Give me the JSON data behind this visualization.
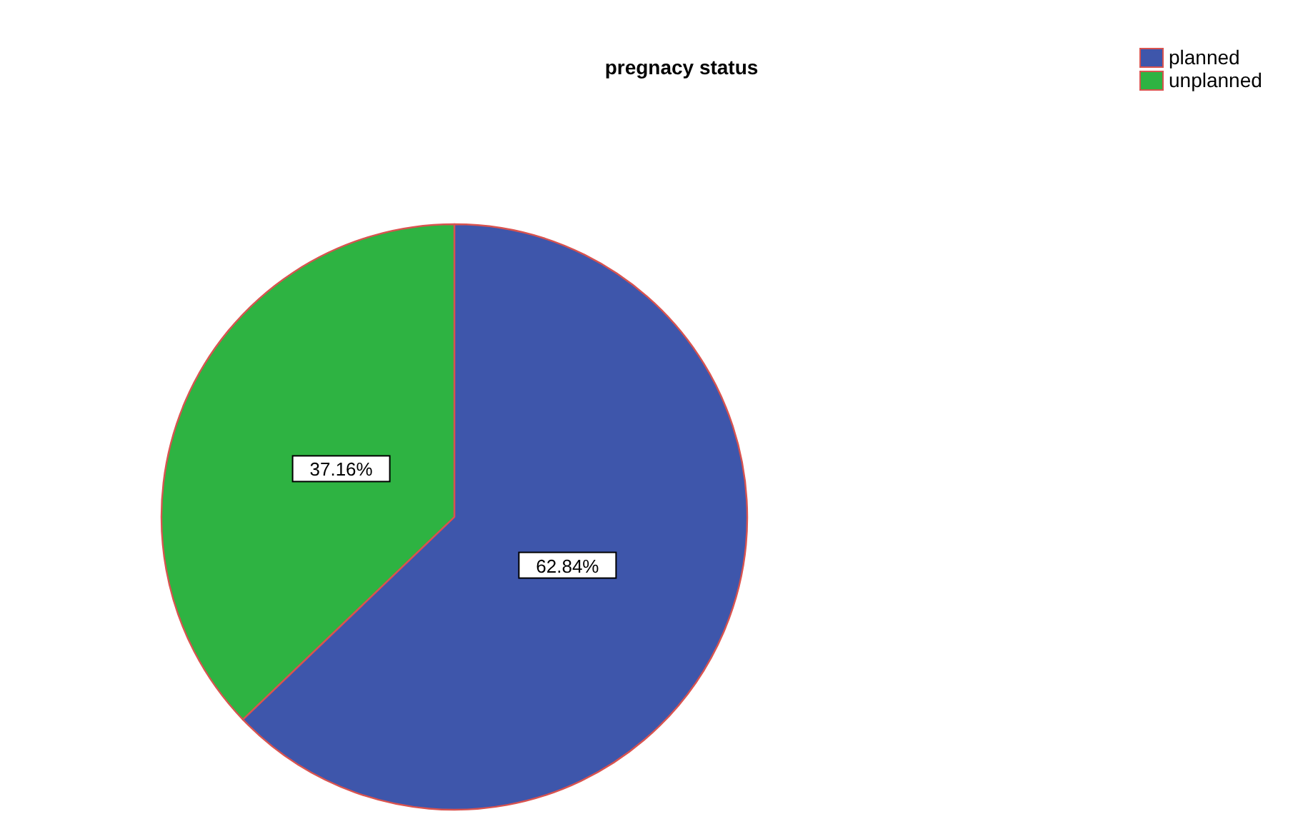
{
  "chart_data": {
    "type": "pie",
    "title": "pregnacy status",
    "categories": [
      "planned",
      "unplanned"
    ],
    "values": [
      62.84,
      37.16
    ],
    "colors": [
      "#3e56ab",
      "#2eb342"
    ],
    "value_labels": [
      "62.84%",
      "37.16%"
    ],
    "legend": "top right"
  }
}
